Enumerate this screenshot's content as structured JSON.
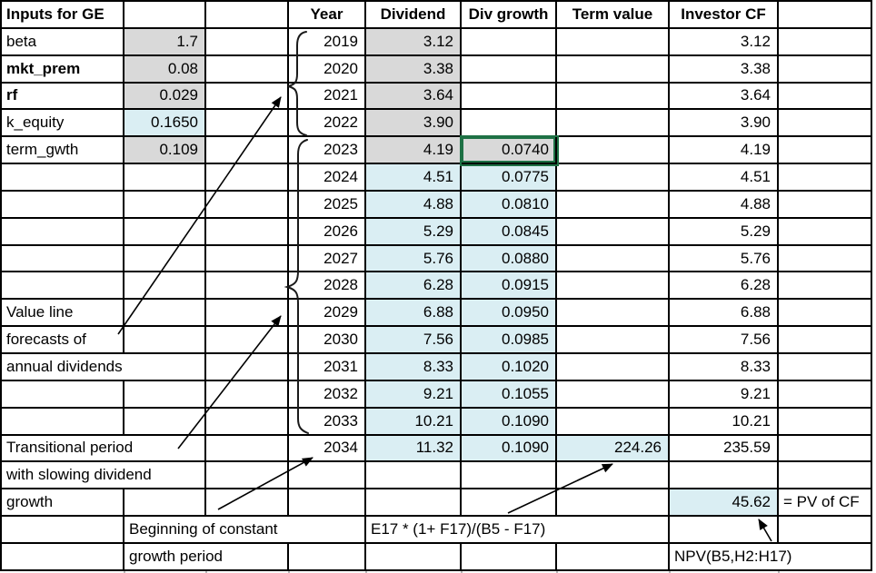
{
  "sheet": {
    "colors": {
      "input_fill_gray": "#d9d9d9",
      "forecast_fill_blue": "#daeef3",
      "selection_border_green": "#1E7145",
      "grid_border": "#000000"
    },
    "selected_cell_value": "0.0740",
    "rows": [
      [
        {
          "c": 0,
          "t": "Inputs for GE",
          "a": "l",
          "b": 1
        },
        {
          "c": 1
        },
        {
          "c": 2
        },
        {
          "c": 3,
          "t": "Year",
          "a": "c",
          "b": 1
        },
        {
          "c": 4,
          "t": "Dividend",
          "a": "c",
          "b": 1
        },
        {
          "c": 5,
          "t": "Div growth",
          "a": "c",
          "b": 1
        },
        {
          "c": 6,
          "t": "Term value",
          "a": "c",
          "b": 1
        },
        {
          "c": 7,
          "t": "Investor CF",
          "a": "c",
          "b": 1
        },
        {
          "c": 8
        }
      ],
      [
        {
          "c": 0,
          "t": "beta",
          "a": "l"
        },
        {
          "c": 1,
          "t": "1.7",
          "a": "r",
          "f": "g"
        },
        {
          "c": 2
        },
        {
          "c": 3,
          "t": "2019",
          "a": "r"
        },
        {
          "c": 4,
          "t": "3.12",
          "a": "r",
          "f": "g"
        },
        {
          "c": 5
        },
        {
          "c": 6
        },
        {
          "c": 7,
          "t": "3.12",
          "a": "r"
        },
        {
          "c": 8
        }
      ],
      [
        {
          "c": 0,
          "t": "mkt_prem",
          "a": "l",
          "b": 1
        },
        {
          "c": 1,
          "t": "0.08",
          "a": "r",
          "f": "g"
        },
        {
          "c": 2
        },
        {
          "c": 3,
          "t": "2020",
          "a": "r"
        },
        {
          "c": 4,
          "t": "3.38",
          "a": "r",
          "f": "g"
        },
        {
          "c": 5
        },
        {
          "c": 6
        },
        {
          "c": 7,
          "t": "3.38",
          "a": "r"
        },
        {
          "c": 8
        }
      ],
      [
        {
          "c": 0,
          "t": "rf",
          "a": "l",
          "b": 1
        },
        {
          "c": 1,
          "t": "0.029",
          "a": "r",
          "f": "g"
        },
        {
          "c": 2
        },
        {
          "c": 3,
          "t": "2021",
          "a": "r"
        },
        {
          "c": 4,
          "t": "3.64",
          "a": "r",
          "f": "g"
        },
        {
          "c": 5
        },
        {
          "c": 6
        },
        {
          "c": 7,
          "t": "3.64",
          "a": "r"
        },
        {
          "c": 8
        }
      ],
      [
        {
          "c": 0,
          "t": "k_equity",
          "a": "l"
        },
        {
          "c": 1,
          "t": "0.1650",
          "a": "r",
          "f": "b"
        },
        {
          "c": 2
        },
        {
          "c": 3,
          "t": "2022",
          "a": "r"
        },
        {
          "c": 4,
          "t": "3.90",
          "a": "r",
          "f": "g"
        },
        {
          "c": 5
        },
        {
          "c": 6
        },
        {
          "c": 7,
          "t": "3.90",
          "a": "r"
        },
        {
          "c": 8
        }
      ],
      [
        {
          "c": 0,
          "t": "term_gwth",
          "a": "l"
        },
        {
          "c": 1,
          "t": "0.109",
          "a": "r",
          "f": "g"
        },
        {
          "c": 2
        },
        {
          "c": 3,
          "t": "2023",
          "a": "r"
        },
        {
          "c": 4,
          "t": "4.19",
          "a": "r",
          "f": "g"
        },
        {
          "c": 5,
          "t": "0.0740",
          "a": "r",
          "f": "g",
          "sel": 1
        },
        {
          "c": 6
        },
        {
          "c": 7,
          "t": "4.19",
          "a": "r"
        },
        {
          "c": 8
        }
      ],
      [
        {
          "c": 0
        },
        {
          "c": 1
        },
        {
          "c": 2
        },
        {
          "c": 3,
          "t": "2024",
          "a": "r"
        },
        {
          "c": 4,
          "t": "4.51",
          "a": "r",
          "f": "b"
        },
        {
          "c": 5,
          "t": "0.0775",
          "a": "r",
          "f": "b"
        },
        {
          "c": 6
        },
        {
          "c": 7,
          "t": "4.51",
          "a": "r"
        },
        {
          "c": 8
        }
      ],
      [
        {
          "c": 0
        },
        {
          "c": 1
        },
        {
          "c": 2
        },
        {
          "c": 3,
          "t": "2025",
          "a": "r"
        },
        {
          "c": 4,
          "t": "4.88",
          "a": "r",
          "f": "b"
        },
        {
          "c": 5,
          "t": "0.0810",
          "a": "r",
          "f": "b"
        },
        {
          "c": 6
        },
        {
          "c": 7,
          "t": "4.88",
          "a": "r"
        },
        {
          "c": 8
        }
      ],
      [
        {
          "c": 0
        },
        {
          "c": 1
        },
        {
          "c": 2
        },
        {
          "c": 3,
          "t": "2026",
          "a": "r"
        },
        {
          "c": 4,
          "t": "5.29",
          "a": "r",
          "f": "b"
        },
        {
          "c": 5,
          "t": "0.0845",
          "a": "r",
          "f": "b"
        },
        {
          "c": 6
        },
        {
          "c": 7,
          "t": "5.29",
          "a": "r"
        },
        {
          "c": 8
        }
      ],
      [
        {
          "c": 0
        },
        {
          "c": 1
        },
        {
          "c": 2
        },
        {
          "c": 3,
          "t": "2027",
          "a": "r"
        },
        {
          "c": 4,
          "t": "5.76",
          "a": "r",
          "f": "b"
        },
        {
          "c": 5,
          "t": "0.0880",
          "a": "r",
          "f": "b"
        },
        {
          "c": 6
        },
        {
          "c": 7,
          "t": "5.76",
          "a": "r"
        },
        {
          "c": 8
        }
      ],
      [
        {
          "c": 0
        },
        {
          "c": 1
        },
        {
          "c": 2
        },
        {
          "c": 3,
          "t": "2028",
          "a": "r"
        },
        {
          "c": 4,
          "t": "6.28",
          "a": "r",
          "f": "b"
        },
        {
          "c": 5,
          "t": "0.0915",
          "a": "r",
          "f": "b"
        },
        {
          "c": 6
        },
        {
          "c": 7,
          "t": "6.28",
          "a": "r"
        },
        {
          "c": 8
        }
      ],
      [
        {
          "c": 0,
          "t": "Value line",
          "a": "l"
        },
        {
          "c": 1
        },
        {
          "c": 2
        },
        {
          "c": 3,
          "t": "2029",
          "a": "r"
        },
        {
          "c": 4,
          "t": "6.88",
          "a": "r",
          "f": "b"
        },
        {
          "c": 5,
          "t": "0.0950",
          "a": "r",
          "f": "b"
        },
        {
          "c": 6
        },
        {
          "c": 7,
          "t": "6.88",
          "a": "r"
        },
        {
          "c": 8
        }
      ],
      [
        {
          "c": 0,
          "t": "forecasts of",
          "a": "l"
        },
        {
          "c": 1
        },
        {
          "c": 2
        },
        {
          "c": 3,
          "t": "2030",
          "a": "r"
        },
        {
          "c": 4,
          "t": "7.56",
          "a": "r",
          "f": "b"
        },
        {
          "c": 5,
          "t": "0.0985",
          "a": "r",
          "f": "b"
        },
        {
          "c": 6
        },
        {
          "c": 7,
          "t": "7.56",
          "a": "r"
        },
        {
          "c": 8
        }
      ],
      [
        {
          "c": 0,
          "s": 2,
          "t": "annual dividends",
          "a": "l"
        },
        {
          "c": 2
        },
        {
          "c": 3,
          "t": "2031",
          "a": "r"
        },
        {
          "c": 4,
          "t": "8.33",
          "a": "r",
          "f": "b"
        },
        {
          "c": 5,
          "t": "0.1020",
          "a": "r",
          "f": "b"
        },
        {
          "c": 6
        },
        {
          "c": 7,
          "t": "8.33",
          "a": "r"
        },
        {
          "c": 8
        }
      ],
      [
        {
          "c": 0
        },
        {
          "c": 1
        },
        {
          "c": 2
        },
        {
          "c": 3,
          "t": "2032",
          "a": "r"
        },
        {
          "c": 4,
          "t": "9.21",
          "a": "r",
          "f": "b"
        },
        {
          "c": 5,
          "t": "0.1055",
          "a": "r",
          "f": "b"
        },
        {
          "c": 6
        },
        {
          "c": 7,
          "t": "9.21",
          "a": "r"
        },
        {
          "c": 8
        }
      ],
      [
        {
          "c": 0
        },
        {
          "c": 1
        },
        {
          "c": 2
        },
        {
          "c": 3,
          "t": "2033",
          "a": "r"
        },
        {
          "c": 4,
          "t": "10.21",
          "a": "r",
          "f": "b"
        },
        {
          "c": 5,
          "t": "0.1090",
          "a": "r",
          "f": "b"
        },
        {
          "c": 6
        },
        {
          "c": 7,
          "t": "10.21",
          "a": "r"
        },
        {
          "c": 8
        }
      ],
      [
        {
          "c": 0,
          "s": 2,
          "t": "Transitional period",
          "a": "l"
        },
        {
          "c": 2
        },
        {
          "c": 3,
          "t": "2034",
          "a": "r"
        },
        {
          "c": 4,
          "t": "11.32",
          "a": "r",
          "f": "b"
        },
        {
          "c": 5,
          "t": "0.1090",
          "a": "r",
          "f": "b"
        },
        {
          "c": 6,
          "t": "224.26",
          "a": "r",
          "f": "b"
        },
        {
          "c": 7,
          "t": "235.59",
          "a": "r"
        },
        {
          "c": 8
        }
      ],
      [
        {
          "c": 0,
          "s": 2,
          "t": "with slowing dividend",
          "a": "l"
        },
        {
          "c": 2
        },
        {
          "c": 3
        },
        {
          "c": 4
        },
        {
          "c": 5
        },
        {
          "c": 6
        },
        {
          "c": 7
        },
        {
          "c": 8
        }
      ],
      [
        {
          "c": 0,
          "t": "growth",
          "a": "l"
        },
        {
          "c": 1
        },
        {
          "c": 2
        },
        {
          "c": 3
        },
        {
          "c": 4
        },
        {
          "c": 5
        },
        {
          "c": 6
        },
        {
          "c": 7,
          "t": "45.62",
          "a": "r",
          "f": "b"
        },
        {
          "c": 8,
          "t": "= PV of CF",
          "a": "l"
        }
      ],
      [
        {
          "c": 0
        },
        {
          "c": 1,
          "s": 3,
          "t": "Beginning of constant",
          "a": "l"
        },
        {
          "c": 4,
          "s": 3,
          "t": "E17 * (1+ F17)/(B5 - F17)",
          "a": "l"
        },
        {
          "c": 7
        },
        {
          "c": 8
        }
      ],
      [
        {
          "c": 0
        },
        {
          "c": 1,
          "s": 2,
          "t": "growth period",
          "a": "l"
        },
        {
          "c": 3
        },
        {
          "c": 4
        },
        {
          "c": 5
        },
        {
          "c": 6
        },
        {
          "c": 7,
          "s": 2,
          "t": "NPV(B5,H2:H17)",
          "a": "l"
        }
      ]
    ]
  }
}
